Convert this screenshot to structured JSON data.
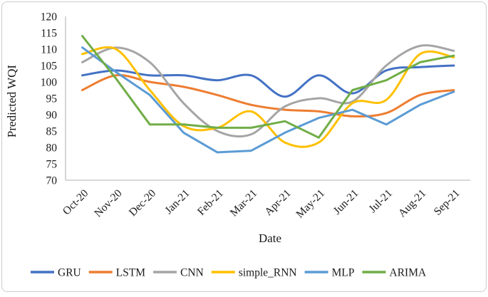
{
  "figure": {
    "background": "#ffffff",
    "border_color": "#c9ccd0",
    "axis_color": "#bfbfbf",
    "text_color": "#1a1a1a"
  },
  "chart_data": {
    "type": "line",
    "title": "",
    "xlabel": "Date",
    "ylabel": "Predicted WQI",
    "categories": [
      "Oct-20",
      "Nov-20",
      "Dec-20",
      "Jan-21",
      "Feb-21",
      "Mar-21",
      "Apr-21",
      "May-21",
      "Jun-21",
      "Jul-21",
      "Aug-21",
      "Sep-21"
    ],
    "ylim": [
      70,
      120
    ],
    "ytick_step": 5,
    "yticks": [
      "70",
      "75",
      "80",
      "85",
      "90",
      "95",
      "100",
      "105",
      "110",
      "115",
      "120"
    ],
    "grid": false,
    "legend_position": "bottom",
    "series": [
      {
        "name": "GRU",
        "color": "#4472C4",
        "smooth": true,
        "values": [
          102,
          103.5,
          102,
          102,
          100.5,
          102,
          95.5,
          102,
          96.5,
          103.5,
          104.5,
          105
        ]
      },
      {
        "name": "LSTM",
        "color": "#ED7D31",
        "smooth": true,
        "values": [
          97.5,
          102,
          100,
          98.5,
          96,
          93,
          91.5,
          91,
          89.5,
          90.5,
          96,
          97.5
        ]
      },
      {
        "name": "CNN",
        "color": "#A5A5A5",
        "smooth": true,
        "values": [
          106,
          110.5,
          106,
          93.5,
          85,
          84,
          92.5,
          95,
          94,
          105,
          111,
          109.5
        ]
      },
      {
        "name": "simple_RNN",
        "color": "#FFC000",
        "smooth": true,
        "values": [
          108.5,
          110,
          97.5,
          86.5,
          86,
          91,
          81.5,
          81.5,
          93.5,
          94.5,
          108.5,
          107.5
        ]
      },
      {
        "name": "MLP",
        "color": "#5B9BD5",
        "smooth": false,
        "values": [
          110.5,
          103,
          96,
          84.5,
          78.5,
          79,
          84.5,
          89,
          91.5,
          87,
          93,
          97
        ]
      },
      {
        "name": "ARIMA",
        "color": "#70AD47",
        "smooth": false,
        "values": [
          114,
          101,
          87,
          87,
          86,
          86,
          88,
          83,
          97.5,
          100.5,
          106,
          108
        ]
      }
    ]
  }
}
